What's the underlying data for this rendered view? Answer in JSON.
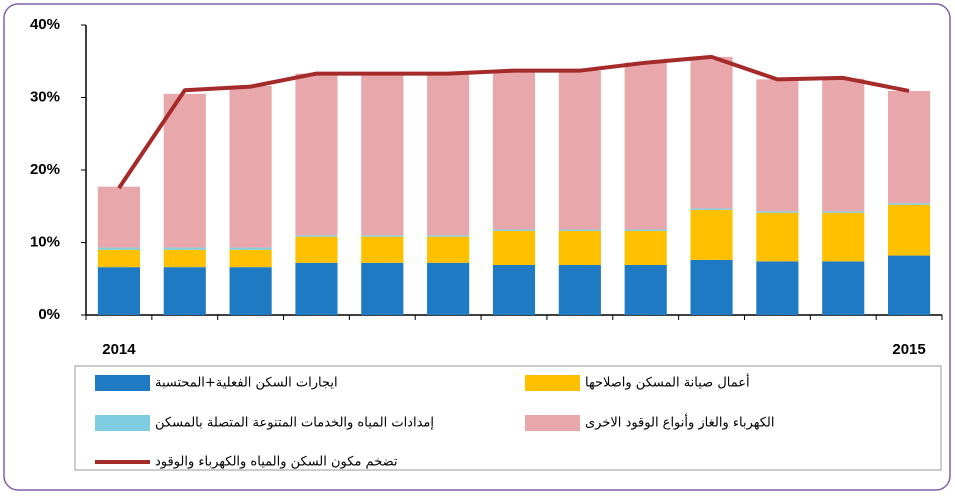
{
  "chart_data": {
    "type": "stacked-bar-line",
    "categories": [
      "2014",
      null,
      null,
      null,
      null,
      null,
      null,
      null,
      null,
      null,
      null,
      null,
      "2015"
    ],
    "series": [
      {
        "name": "ايجارات السكن الفعلية+المحتسبة",
        "color": "#1f7ac4",
        "values": [
          6.6,
          6.6,
          6.6,
          7.2,
          7.2,
          7.2,
          6.9,
          6.9,
          6.9,
          7.6,
          7.4,
          7.4,
          8.2
        ]
      },
      {
        "name": "أعمال صيانة المسكن واصلاحها",
        "color": "#ffc000",
        "values": [
          2.4,
          2.4,
          2.4,
          3.6,
          3.6,
          3.6,
          4.7,
          4.7,
          4.7,
          6.9,
          6.7,
          6.7,
          7.0
        ]
      },
      {
        "name": "إمدادات المياه والخدمات المتنوعة المتصلة بالمسكن",
        "color": "#7fcde0",
        "values": [
          0.3,
          0.3,
          0.3,
          0.2,
          0.2,
          0.2,
          0.2,
          0.2,
          0.2,
          0.2,
          0.2,
          0.2,
          0.2
        ]
      },
      {
        "name": "الكهرباء والغاز وأنواع الوقود الاخرى",
        "color": "#e8a8ab",
        "values": [
          8.4,
          21.2,
          22.3,
          22.3,
          22.3,
          22.3,
          21.9,
          21.9,
          23.0,
          20.9,
          18.2,
          18.3,
          15.5
        ]
      },
      {
        "name": "تضخم مكون السكن والمياه والكهرباء والوقود",
        "color": "#a52a2a",
        "type": "line",
        "values": [
          17.5,
          31.0,
          31.5,
          33.3,
          33.3,
          33.3,
          33.7,
          33.7,
          34.8,
          35.6,
          32.5,
          32.7,
          30.9
        ]
      }
    ],
    "ylim": [
      0,
      40
    ],
    "yticks": [
      {
        "value": 0,
        "label": "0%"
      },
      {
        "value": 10,
        "label": "10%"
      },
      {
        "value": 20,
        "label": "20%"
      },
      {
        "value": 30,
        "label": "30%"
      },
      {
        "value": 40,
        "label": "40%"
      }
    ]
  }
}
